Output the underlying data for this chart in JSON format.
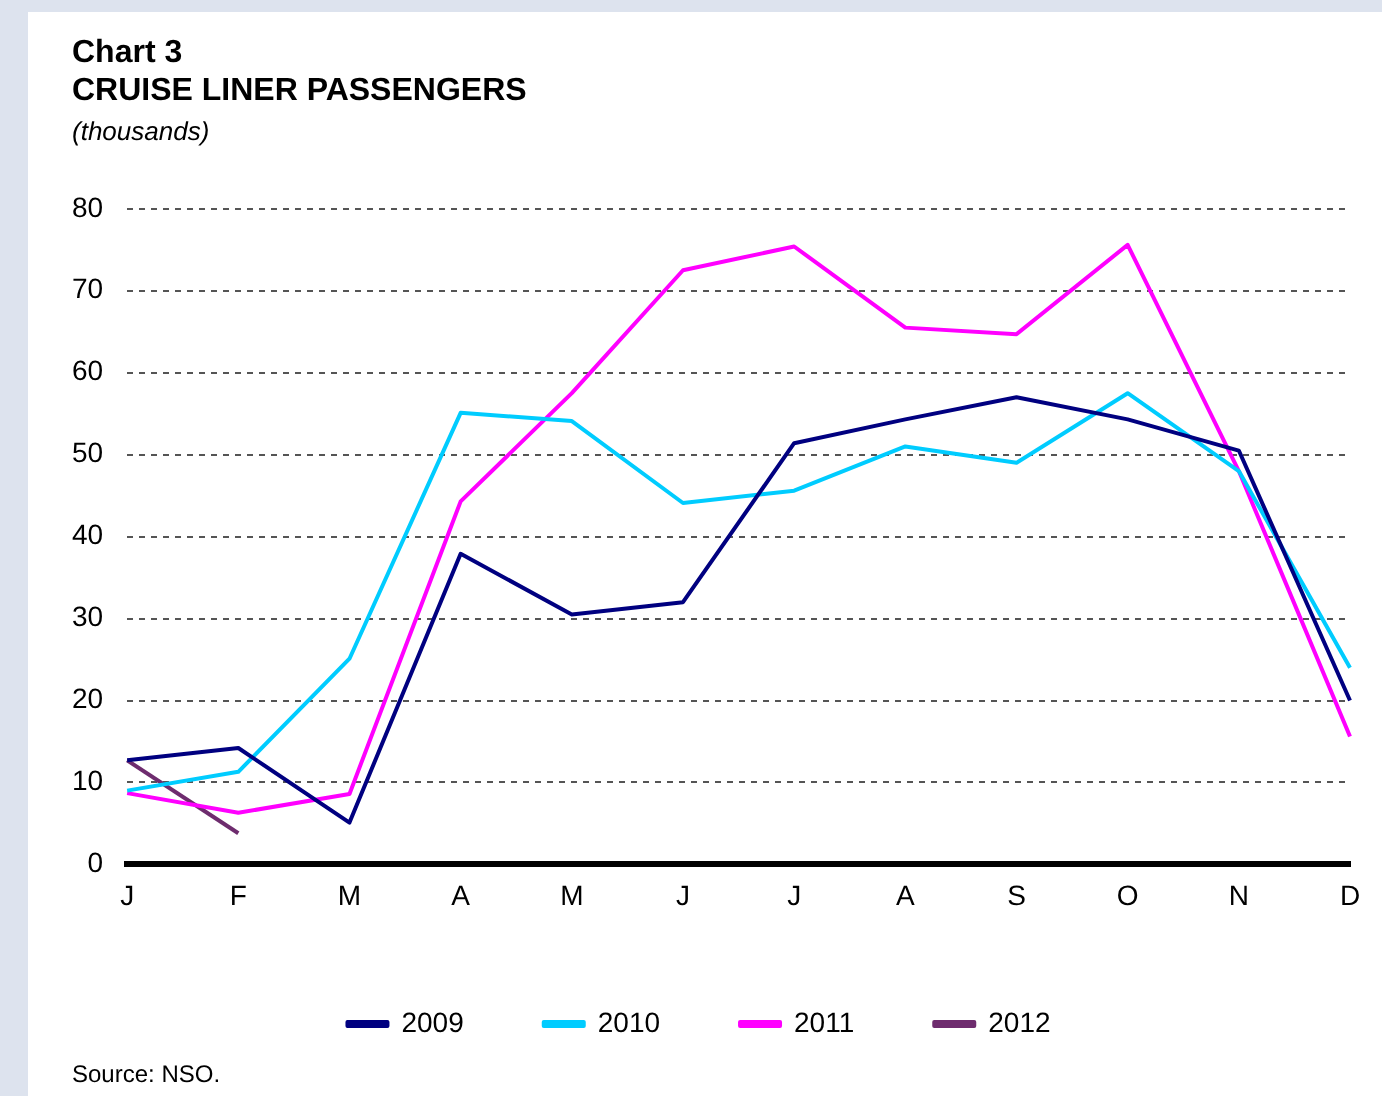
{
  "chart_data": {
    "type": "line",
    "title": "Chart 3",
    "subtitle": "CRUISE LINER PASSENGERS",
    "ylabel": "(thousands)",
    "categories": [
      "J",
      "F",
      "M",
      "A",
      "M",
      "J",
      "J",
      "A",
      "S",
      "O",
      "N",
      "D"
    ],
    "series": [
      {
        "name": "2009",
        "color": "#000080",
        "values": [
          12.7,
          14.2,
          5.1,
          37.9,
          30.5,
          32,
          51.4,
          54.3,
          57,
          54.3,
          50.5,
          20
        ]
      },
      {
        "name": "2010",
        "color": "#00ccff",
        "values": [
          9,
          11.3,
          25.1,
          55.1,
          54.1,
          44.1,
          45.6,
          51,
          49,
          57.5,
          48,
          24
        ]
      },
      {
        "name": "2011",
        "color": "#ff00ff",
        "values": [
          8.7,
          6.3,
          8.6,
          44.3,
          57.5,
          72.5,
          75.4,
          65.5,
          64.7,
          75.6,
          48,
          15.6
        ]
      },
      {
        "name": "2012",
        "color": "#6e2c6e",
        "values": [
          12.7,
          3.8,
          null,
          null,
          null,
          null,
          null,
          null,
          null,
          null,
          null,
          null
        ]
      }
    ],
    "ylim": [
      0,
      80
    ],
    "yticks": [
      0,
      10,
      20,
      30,
      40,
      50,
      60,
      70,
      80
    ],
    "grid": "y",
    "legend": "bottom",
    "marker": "none",
    "line_style": "solid",
    "annotations": [
      "Source: NSO."
    ]
  }
}
